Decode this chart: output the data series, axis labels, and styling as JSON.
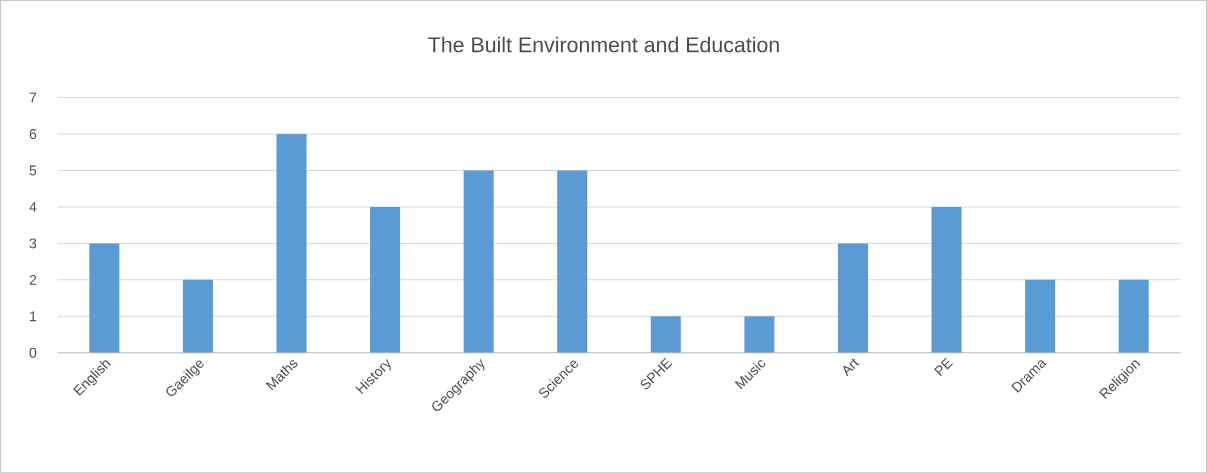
{
  "chart_data": {
    "type": "bar",
    "title": "The Built Environment and Education",
    "categories": [
      "English",
      "Gaeilge",
      "Maths",
      "History",
      "Geography",
      "Science",
      "SPHE",
      "Music",
      "Art",
      "PE",
      "Drama",
      "Religion"
    ],
    "values": [
      3,
      2,
      6,
      4,
      5,
      5,
      1,
      1,
      3,
      4,
      2,
      2
    ],
    "color": "#5b9bd5",
    "ylim": [
      0,
      7
    ],
    "yticks": [
      0,
      1,
      2,
      3,
      4,
      5,
      6,
      7
    ],
    "grid": "y"
  }
}
